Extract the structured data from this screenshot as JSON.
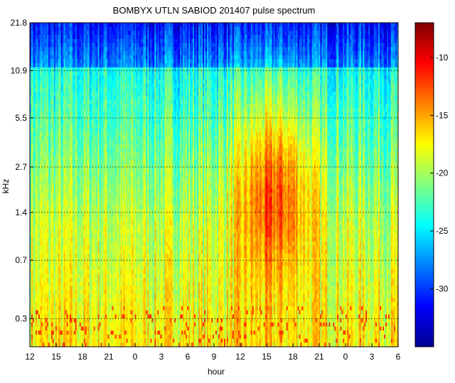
{
  "chart_data": {
    "type": "heatmap",
    "title": "BOMBYX UTLN SABIOD 201407 pulse spectrum",
    "xlabel": "hour",
    "ylabel": "kHz",
    "x_tick_labels": [
      "12",
      "15",
      "18",
      "21",
      "0",
      "3",
      "6",
      "9",
      "12",
      "15",
      "18",
      "21",
      "0",
      "3",
      "6"
    ],
    "y_ticks": [
      0.3,
      0.7,
      1.4,
      2.7,
      5.5,
      10.9,
      21.8
    ],
    "y_tick_labels": [
      "0.3",
      "0.7",
      "1.4",
      "2.7",
      "5.5",
      "10.9",
      "21.8"
    ],
    "y_scale": "log",
    "y_range": [
      0.2,
      21.8
    ],
    "x_range_hours": [
      0,
      42
    ],
    "grid": "dotted horizontal at y ticks",
    "colorbar": {
      "ticks": [
        -10,
        -15,
        -20,
        -25,
        -30
      ],
      "tick_labels": [
        "-10",
        "-15",
        "-20",
        "-25",
        "-30"
      ],
      "range": [
        -35,
        -7
      ],
      "colormap": "jet"
    },
    "description_of_values": {
      "high_freq_band_level": -31,
      "mid_freq_level": -24,
      "low_freq_level": -17,
      "hotspot_level": -12
    }
  }
}
